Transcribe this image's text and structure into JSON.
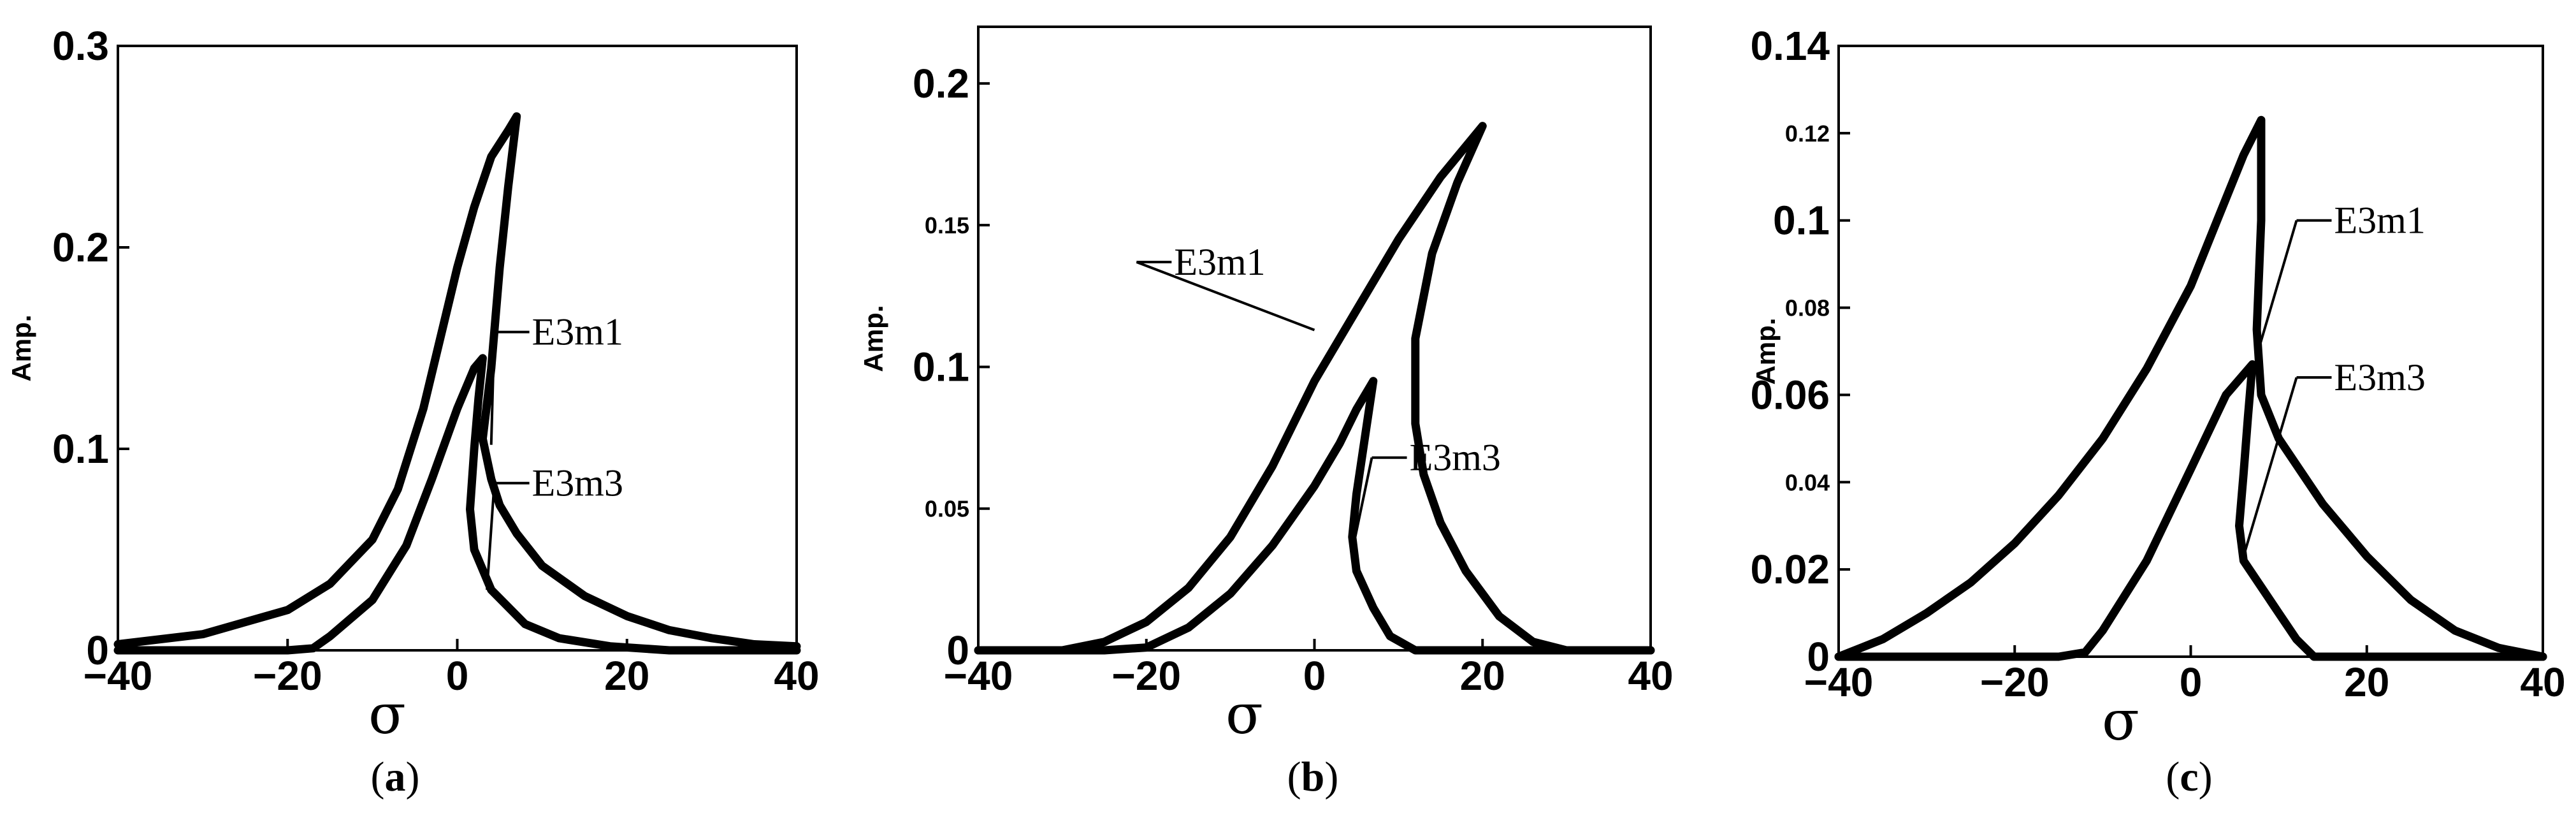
{
  "chart_data": [
    {
      "type": "line",
      "ylabel": "Amp.",
      "xlabel": "σ",
      "caption": {
        "open": "(",
        "letter": "a",
        "close": ")"
      },
      "xlim": [
        -40,
        40
      ],
      "ylim": [
        0,
        0.3
      ],
      "x_ticks": [
        {
          "v": -40,
          "t": "−40"
        },
        {
          "v": -20,
          "t": "−20"
        },
        {
          "v": 0,
          "t": "0"
        },
        {
          "v": 20,
          "t": "20"
        },
        {
          "v": 40,
          "t": "40"
        }
      ],
      "y_ticks": [
        {
          "v": 0,
          "t": "0",
          "s": "major"
        },
        {
          "v": 0.1,
          "t": "0.1",
          "s": "major"
        },
        {
          "v": 0.2,
          "t": "0.2",
          "s": "major"
        },
        {
          "v": 0.3,
          "t": "0.3",
          "s": "major"
        }
      ],
      "series": [
        {
          "x": [
            -40,
            -30,
            -20,
            -15,
            -10,
            -7,
            -4,
            -2,
            0,
            2,
            4,
            6,
            7,
            6,
            5,
            4,
            3,
            4,
            5,
            7,
            10,
            15,
            20,
            25,
            30,
            35,
            40
          ],
          "y": [
            0.003,
            0.008,
            0.02,
            0.033,
            0.055,
            0.08,
            0.12,
            0.155,
            0.19,
            0.22,
            0.245,
            0.258,
            0.265,
            0.23,
            0.19,
            0.14,
            0.105,
            0.085,
            0.072,
            0.058,
            0.042,
            0.027,
            0.017,
            0.01,
            0.006,
            0.003,
            0.002
          ]
        },
        {
          "x": [
            -40,
            -30,
            -20,
            -17,
            -15,
            -10,
            -6,
            -3,
            0,
            2,
            3,
            2.5,
            2,
            1.5,
            2,
            4,
            8,
            12,
            18,
            25,
            30,
            40
          ],
          "y": [
            0,
            0,
            0,
            0.001,
            0.007,
            0.025,
            0.052,
            0.085,
            0.12,
            0.14,
            0.145,
            0.125,
            0.1,
            0.07,
            0.05,
            0.03,
            0.013,
            0.006,
            0.002,
            0,
            0,
            0
          ]
        }
      ],
      "annotations": [
        {
          "text": "E3m1",
          "tx": 8.5,
          "ty": 0.158,
          "px": 4,
          "py": 0.102
        },
        {
          "text": "E3m3",
          "tx": 8.5,
          "ty": 0.083,
          "px": 3.5,
          "py": 0.03
        }
      ]
    },
    {
      "type": "line",
      "ylabel": "Amp.",
      "xlabel": "σ",
      "caption": {
        "open": "(",
        "letter": "b",
        "close": ")"
      },
      "xlim": [
        -40,
        40
      ],
      "ylim": [
        0,
        0.22
      ],
      "x_ticks": [
        {
          "v": -40,
          "t": "−40"
        },
        {
          "v": -20,
          "t": "−20"
        },
        {
          "v": 0,
          "t": "0"
        },
        {
          "v": 20,
          "t": "20"
        },
        {
          "v": 40,
          "t": "40"
        }
      ],
      "y_ticks": [
        {
          "v": 0,
          "t": "0",
          "s": "major"
        },
        {
          "v": 0.05,
          "t": "0.05",
          "s": "minor"
        },
        {
          "v": 0.1,
          "t": "0.1",
          "s": "major"
        },
        {
          "v": 0.15,
          "t": "0.15",
          "s": "minor"
        },
        {
          "v": 0.2,
          "t": "0.2",
          "s": "major"
        }
      ],
      "series": [
        {
          "x": [
            -40,
            -30,
            -25,
            -20,
            -15,
            -10,
            -5,
            0,
            5,
            10,
            15,
            20,
            17,
            14,
            12,
            12,
            13,
            15,
            18,
            22,
            26,
            30,
            40
          ],
          "y": [
            0,
            0,
            0.003,
            0.01,
            0.022,
            0.04,
            0.065,
            0.095,
            0.12,
            0.145,
            0.167,
            0.185,
            0.165,
            0.14,
            0.11,
            0.08,
            0.062,
            0.045,
            0.028,
            0.012,
            0.003,
            0,
            0
          ]
        },
        {
          "x": [
            -40,
            -30,
            -25,
            -20,
            -15,
            -10,
            -5,
            0,
            3,
            5,
            7,
            6,
            5,
            4.5,
            5,
            7,
            9,
            12,
            15,
            40
          ],
          "y": [
            0,
            0,
            0,
            0.001,
            0.008,
            0.02,
            0.037,
            0.058,
            0.073,
            0.085,
            0.095,
            0.075,
            0.055,
            0.04,
            0.028,
            0.015,
            0.005,
            0,
            0,
            0
          ]
        }
      ],
      "annotations": [
        {
          "text": "E3m1",
          "tx": -17,
          "ty": 0.137,
          "px": 0,
          "py": 0.113
        },
        {
          "text": "E3m3",
          "tx": 11,
          "ty": 0.068,
          "px": 4.5,
          "py": 0.035
        }
      ]
    },
    {
      "type": "line",
      "ylabel": "Amp.",
      "xlabel": "σ",
      "caption": {
        "open": "(",
        "letter": "c",
        "close": ")"
      },
      "xlim": [
        -40,
        40
      ],
      "ylim": [
        0,
        0.14
      ],
      "x_ticks": [
        {
          "v": -40,
          "t": "−40"
        },
        {
          "v": -20,
          "t": "−20"
        },
        {
          "v": 0,
          "t": "0"
        },
        {
          "v": 20,
          "t": "20"
        },
        {
          "v": 40,
          "t": "40"
        }
      ],
      "y_ticks": [
        {
          "v": 0,
          "t": "0",
          "s": "major"
        },
        {
          "v": 0.02,
          "t": "0.02",
          "s": "major"
        },
        {
          "v": 0.04,
          "t": "0.04",
          "s": "minor"
        },
        {
          "v": 0.06,
          "t": "0.06",
          "s": "major"
        },
        {
          "v": 0.08,
          "t": "0.08",
          "s": "minor"
        },
        {
          "v": 0.1,
          "t": "0.1",
          "s": "major"
        },
        {
          "v": 0.12,
          "t": "0.12",
          "s": "minor"
        },
        {
          "v": 0.14,
          "t": "0.14",
          "s": "major"
        }
      ],
      "series": [
        {
          "x": [
            -40,
            -35,
            -30,
            -25,
            -20,
            -15,
            -10,
            -5,
            0,
            3,
            6,
            8,
            8,
            7.5,
            8,
            10,
            15,
            20,
            25,
            30,
            35,
            40
          ],
          "y": [
            0,
            0.004,
            0.01,
            0.017,
            0.026,
            0.037,
            0.05,
            0.066,
            0.085,
            0.1,
            0.115,
            0.123,
            0.1,
            0.075,
            0.06,
            0.05,
            0.035,
            0.023,
            0.013,
            0.006,
            0.002,
            0
          ]
        },
        {
          "x": [
            -40,
            -20,
            -15,
            -12,
            -10,
            -5,
            0,
            4,
            7,
            6.5,
            6,
            5.5,
            6,
            8,
            10,
            12,
            14,
            40
          ],
          "y": [
            0,
            0,
            0,
            0.001,
            0.006,
            0.022,
            0.043,
            0.06,
            0.067,
            0.055,
            0.042,
            0.03,
            0.022,
            0.016,
            0.01,
            0.004,
            0,
            0
          ]
        }
      ],
      "annotations": [
        {
          "text": "E3m1",
          "tx": 16,
          "ty": 0.1,
          "px": 7.5,
          "py": 0.069
        },
        {
          "text": "E3m3",
          "tx": 16,
          "ty": 0.064,
          "px": 6,
          "py": 0.023
        }
      ]
    }
  ]
}
